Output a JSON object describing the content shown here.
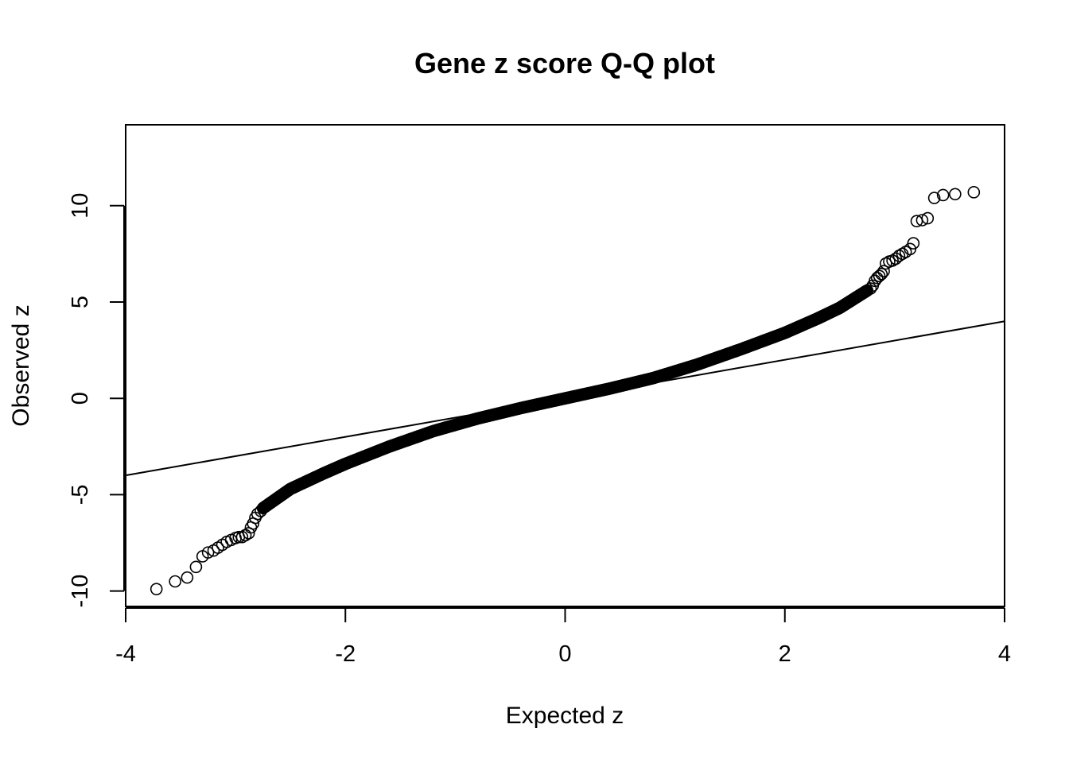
{
  "chart_data": {
    "type": "scatter",
    "title": "Gene z score Q-Q plot",
    "xlabel": "Expected z",
    "ylabel": "Observed z",
    "xlim": [
      -4,
      4
    ],
    "ylim": [
      -10.8,
      14.2
    ],
    "x_ticks": [
      -4,
      -2,
      0,
      2,
      4
    ],
    "y_ticks": [
      -10,
      -5,
      0,
      5,
      10
    ],
    "grid": false,
    "legend": "none",
    "reference_line": {
      "slope": 1,
      "intercept": 0
    },
    "tail_points": [
      {
        "x": -3.72,
        "y": -9.9
      },
      {
        "x": -3.55,
        "y": -9.5
      },
      {
        "x": -3.44,
        "y": -9.3
      },
      {
        "x": -3.36,
        "y": -8.75
      },
      {
        "x": -3.3,
        "y": -8.2
      },
      {
        "x": -3.25,
        "y": -8.0
      },
      {
        "x": -3.2,
        "y": -7.9
      },
      {
        "x": -3.16,
        "y": -7.75
      },
      {
        "x": -3.12,
        "y": -7.6
      },
      {
        "x": -3.08,
        "y": -7.45
      },
      {
        "x": -3.04,
        "y": -7.35
      },
      {
        "x": -3.0,
        "y": -7.25
      },
      {
        "x": -2.97,
        "y": -7.2
      },
      {
        "x": -2.94,
        "y": -7.2
      },
      {
        "x": -2.91,
        "y": -7.1
      },
      {
        "x": -2.88,
        "y": -7.0
      },
      {
        "x": -2.86,
        "y": -6.7
      },
      {
        "x": -2.84,
        "y": -6.5
      },
      {
        "x": -2.82,
        "y": -6.2
      },
      {
        "x": -2.8,
        "y": -6.0
      },
      {
        "x": -2.77,
        "y": -5.85
      },
      {
        "x": 2.78,
        "y": 5.7
      },
      {
        "x": 2.8,
        "y": 5.85
      },
      {
        "x": 2.82,
        "y": 6.1
      },
      {
        "x": 2.84,
        "y": 6.25
      },
      {
        "x": 2.86,
        "y": 6.35
      },
      {
        "x": 2.88,
        "y": 6.45
      },
      {
        "x": 2.9,
        "y": 6.6
      },
      {
        "x": 2.92,
        "y": 7.0
      },
      {
        "x": 2.95,
        "y": 7.1
      },
      {
        "x": 2.98,
        "y": 7.15
      },
      {
        "x": 3.01,
        "y": 7.25
      },
      {
        "x": 3.04,
        "y": 7.4
      },
      {
        "x": 3.07,
        "y": 7.5
      },
      {
        "x": 3.1,
        "y": 7.6
      },
      {
        "x": 3.14,
        "y": 7.75
      },
      {
        "x": 3.17,
        "y": 8.05
      },
      {
        "x": 3.2,
        "y": 9.2
      },
      {
        "x": 3.25,
        "y": 9.25
      },
      {
        "x": 3.3,
        "y": 9.35
      },
      {
        "x": 3.36,
        "y": 10.4
      },
      {
        "x": 3.44,
        "y": 10.55
      },
      {
        "x": 3.55,
        "y": 10.6
      },
      {
        "x": 3.72,
        "y": 10.7
      }
    ],
    "curve_anchors": [
      {
        "x": -2.75,
        "y": -5.7
      },
      {
        "x": -2.5,
        "y": -4.7
      },
      {
        "x": -2.2,
        "y": -3.9
      },
      {
        "x": -2.0,
        "y": -3.4
      },
      {
        "x": -1.6,
        "y": -2.5
      },
      {
        "x": -1.2,
        "y": -1.7
      },
      {
        "x": -0.8,
        "y": -1.05
      },
      {
        "x": -0.4,
        "y": -0.5
      },
      {
        "x": 0.0,
        "y": 0.0
      },
      {
        "x": 0.4,
        "y": 0.5
      },
      {
        "x": 0.8,
        "y": 1.05
      },
      {
        "x": 1.2,
        "y": 1.75
      },
      {
        "x": 1.6,
        "y": 2.55
      },
      {
        "x": 2.0,
        "y": 3.4
      },
      {
        "x": 2.3,
        "y": 4.15
      },
      {
        "x": 2.5,
        "y": 4.7
      },
      {
        "x": 2.75,
        "y": 5.6
      }
    ]
  }
}
